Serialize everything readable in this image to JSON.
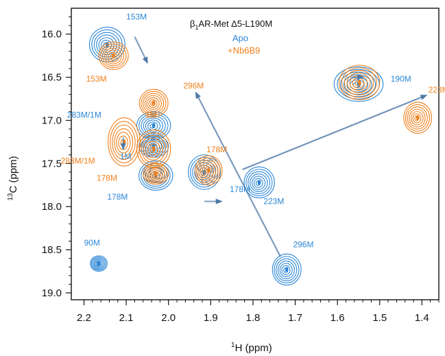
{
  "chart_data": {
    "type": "scatter",
    "title": "β1AR-Met Δ5-L190M",
    "title_parts": {
      "beta": "β",
      "sub": "1",
      "rest": "AR-Met Δ5-L190M"
    },
    "xlabel": "1H (ppm)",
    "xlabel_parts": {
      "sup": "1",
      "rest": "H (ppm)"
    },
    "ylabel": "13C (ppm)",
    "ylabel_parts": {
      "sup": "13",
      "rest": "C (ppm)"
    },
    "xlim": [
      2.23,
      1.36
    ],
    "ylim": [
      19.08,
      15.7
    ],
    "x_reversed": true,
    "y_reversed": true,
    "x_ticks": [
      2.2,
      2.1,
      2.0,
      1.9,
      1.8,
      1.7,
      1.6,
      1.5,
      1.4
    ],
    "x_tick_labels": [
      "2.2",
      "2.1",
      "2.0",
      "1.9",
      "1.8",
      "1.7",
      "1.6",
      "1.5",
      "1.4"
    ],
    "y_ticks": [
      16.0,
      16.5,
      17.0,
      17.5,
      18.0,
      18.5,
      19.0
    ],
    "y_tick_labels": [
      "16.0",
      "16.5",
      "17.0",
      "17.5",
      "18.0",
      "18.5",
      "19.0"
    ],
    "legend": {
      "placement": "top-center",
      "entries": [
        {
          "name": "Apo",
          "color": "#2b86d6"
        },
        {
          "name": "+Nb6B9",
          "color": "#f07f1a"
        }
      ]
    },
    "series": [
      {
        "name": "Apo",
        "color": "#2b86d6",
        "peaks": [
          {
            "label": "153M",
            "x": 2.145,
            "y": 16.12,
            "rx": 0.042,
            "ry": 0.2
          },
          {
            "label": "283M/1M",
            "x": 2.035,
            "y": 17.06,
            "rx": 0.04,
            "ry": 0.16
          },
          {
            "label": "1M",
            "x": 2.035,
            "y": 17.3,
            "rx": 0.035,
            "ry": 0.13
          },
          {
            "label": "178M",
            "x": 2.03,
            "y": 17.64,
            "rx": 0.04,
            "ry": 0.17
          },
          {
            "label": "178M",
            "x": 1.915,
            "y": 17.6,
            "rx": 0.038,
            "ry": 0.2
          },
          {
            "label": "190M",
            "x": 1.55,
            "y": 16.58,
            "rx": 0.058,
            "ry": 0.2
          },
          {
            "label": "223M",
            "x": 1.785,
            "y": 17.72,
            "rx": 0.036,
            "ry": 0.18
          },
          {
            "label": "296M",
            "x": 1.72,
            "y": 18.73,
            "rx": 0.034,
            "ry": 0.18
          },
          {
            "label": "90M",
            "x": 2.165,
            "y": 18.66,
            "rx": 0.02,
            "ry": 0.09
          }
        ]
      },
      {
        "name": "+Nb6B9",
        "color": "#f07f1a",
        "peaks": [
          {
            "label": "153M",
            "x": 2.13,
            "y": 16.25,
            "rx": 0.035,
            "ry": 0.16
          },
          {
            "label": "296M",
            "x": 2.035,
            "y": 16.8,
            "rx": 0.034,
            "ry": 0.16
          },
          {
            "label": "1M",
            "x": 2.035,
            "y": 17.33,
            "rx": 0.04,
            "ry": 0.22
          },
          {
            "label": "283M/1M",
            "x": 2.105,
            "y": 17.25,
            "rx": 0.038,
            "ry": 0.28
          },
          {
            "label": "178M",
            "x": 2.03,
            "y": 17.62,
            "rx": 0.03,
            "ry": 0.12
          },
          {
            "label": "178M",
            "x": 1.905,
            "y": 17.58,
            "rx": 0.032,
            "ry": 0.17
          },
          {
            "label": "190M",
            "x": 1.548,
            "y": 16.56,
            "rx": 0.048,
            "ry": 0.2
          },
          {
            "label": "223M",
            "x": 1.41,
            "y": 16.97,
            "rx": 0.033,
            "ry": 0.18
          }
        ]
      }
    ],
    "peak_labels": [
      {
        "text": "153M",
        "color": "#2b86d6",
        "x": 2.1,
        "y": 15.83
      },
      {
        "text": "153M",
        "color": "#f07f1a",
        "x": 2.195,
        "y": 16.55
      },
      {
        "text": "296M",
        "color": "#f07f1a",
        "x": 1.965,
        "y": 16.63
      },
      {
        "text": "190M",
        "color": "#2b86d6",
        "x": 1.474,
        "y": 16.55
      },
      {
        "text": "223M",
        "color": "#f07f1a",
        "x": 1.385,
        "y": 16.68
      },
      {
        "text": "283M/1M",
        "color": "#2b86d6",
        "x": 2.24,
        "y": 16.97
      },
      {
        "text": "1M",
        "color": "#f07f1a",
        "x": 2.055,
        "y": 16.97
      },
      {
        "text": "1M",
        "color": "#2b86d6",
        "x": 2.115,
        "y": 17.45
      },
      {
        "text": "283M/1M",
        "color": "#f07f1a",
        "x": 2.255,
        "y": 17.5
      },
      {
        "text": "178M",
        "color": "#f07f1a",
        "x": 1.91,
        "y": 17.37
      },
      {
        "text": "178M",
        "color": "#f07f1a",
        "x": 2.17,
        "y": 17.7
      },
      {
        "text": "178M",
        "color": "#2b86d6",
        "x": 2.145,
        "y": 17.92
      },
      {
        "text": "178M",
        "color": "#2b86d6",
        "x": 1.855,
        "y": 17.83
      },
      {
        "text": "223M",
        "color": "#2b86d6",
        "x": 1.775,
        "y": 17.97
      },
      {
        "text": "296M",
        "color": "#2b86d6",
        "x": 1.705,
        "y": 18.47
      },
      {
        "text": "90M",
        "color": "#2b86d6",
        "x": 2.2,
        "y": 18.45
      }
    ],
    "arrows": [
      {
        "from": [
          2.08,
          16.03
        ],
        "to": [
          2.05,
          16.33
        ],
        "opacity": 0.7
      },
      {
        "from": [
          1.57,
          16.5
        ],
        "to": [
          1.54,
          16.5
        ],
        "opacity": 0.6
      },
      {
        "from": [
          2.107,
          17.19
        ],
        "to": [
          2.107,
          17.33
        ],
        "opacity": 0.55
      },
      {
        "from": [
          1.915,
          17.94
        ],
        "to": [
          1.875,
          17.94
        ],
        "opacity": 0.65
      },
      {
        "from": [
          1.735,
          18.58
        ],
        "to": [
          1.935,
          16.68
        ],
        "opacity": 0.75
      },
      {
        "from": [
          1.825,
          17.57
        ],
        "to": [
          1.39,
          16.71
        ],
        "opacity": 0.8
      }
    ]
  }
}
